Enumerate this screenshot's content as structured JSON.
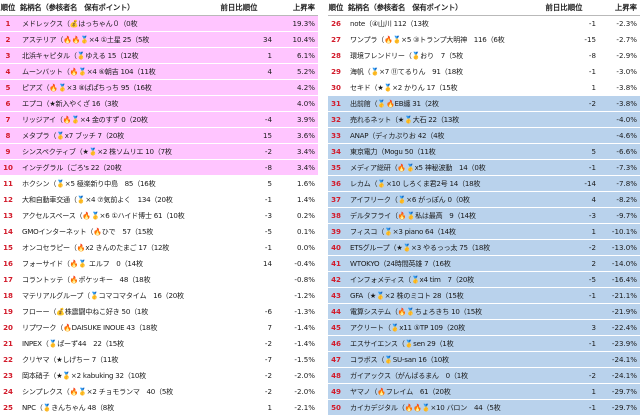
{
  "colors": {
    "highlight_top": "#ffc5ff",
    "highlight_bottom": "#b9d2ec",
    "rank_text": "#d21a2a"
  },
  "left": {
    "headers": {
      "rank": "順位",
      "name": "銘柄名（参核者名　保有ポイント）",
      "prev": "前日比順位",
      "rate": "上昇率"
    },
    "rows": [
      {
        "rank": "1",
        "name": "メドレックス（💰はっちゃん０（0枚",
        "prev": "",
        "rate": "19.3%",
        "hl": true
      },
      {
        "rank": "2",
        "name": "アステリア（🔥🔥🥇×4 ①土星 25（5枚",
        "prev": "34",
        "rate": "10.4%",
        "hl": true
      },
      {
        "rank": "3",
        "name": "北浜キャピタル（🥇ゆえる 15（12枚",
        "prev": "1",
        "rate": "6.1%",
        "hl": true
      },
      {
        "rank": "4",
        "name": "ムーンバット（🔥🥇×4 ⑥朝吉 104（11枚",
        "prev": "4",
        "rate": "5.2%",
        "hl": true
      },
      {
        "rank": "5",
        "name": "ピアズ（🔥🥇×3 ⑧ぱぱちっち 95（16枚",
        "prev": "",
        "rate": "4.2%",
        "hl": true
      },
      {
        "rank": "6",
        "name": "エプコ（★新入やくざ 16（3枚",
        "prev": "",
        "rate": "4.0%",
        "hl": true
      },
      {
        "rank": "7",
        "name": "リッジアイ（🔥🥇×4 金のすず 0（20枚",
        "prev": "-4",
        "rate": "3.9%",
        "hl": true
      },
      {
        "rank": "8",
        "name": "メタプラ（🥇x7 ブッチ 7（20枚",
        "prev": "15",
        "rate": "3.6%",
        "hl": true
      },
      {
        "rank": "9",
        "name": "シンスペクティブ（★🥇×2 株ソムリエ 10（7枚",
        "prev": "-2",
        "rate": "3.4%",
        "hl": true
      },
      {
        "rank": "10",
        "name": "インテグラル（ごろ's 22（20枚",
        "prev": "-8",
        "rate": "3.4%",
        "hl": true
      },
      {
        "rank": "11",
        "name": "ホクシン（🥇×5 極楽新り中島　85（16枚",
        "prev": "5",
        "rate": "1.6%",
        "hl": false
      },
      {
        "rank": "12",
        "name": "大和自動車交通（🥇×4 ⑦気前よく　134（20枚",
        "prev": "-1",
        "rate": "1.4%",
        "hl": false
      },
      {
        "rank": "13",
        "name": "アクセルスペース（🔥🥇×6 ①ハイド博士 61（10枚",
        "prev": "-3",
        "rate": "0.2%",
        "hl": false
      },
      {
        "rank": "14",
        "name": "GMOインターネット（🔥ひで　57（15枚",
        "prev": "-5",
        "rate": "0.1%",
        "hl": false
      },
      {
        "rank": "15",
        "name": "オンコセラピー（🔥x2 きんのたまご 17（12枚",
        "prev": "-1",
        "rate": "0.0%",
        "hl": false
      },
      {
        "rank": "16",
        "name": "フォーサイド（🔥🥇 エルフ　0（14枚",
        "prev": "14",
        "rate": "-0.4%",
        "hl": false
      },
      {
        "rank": "17",
        "name": "コラントッテ（🔥ポケッキー　48（18枚",
        "prev": "",
        "rate": "-0.8%",
        "hl": false
      },
      {
        "rank": "18",
        "name": "マテリアルグループ（🥇コマコマタイム　16（20枚",
        "prev": "",
        "rate": "-1.2%",
        "hl": false
      },
      {
        "rank": "19",
        "name": "フローー（💰株震闘中ねこ好き 50（1枚",
        "prev": "-6",
        "rate": "-1.3%",
        "hl": false
      },
      {
        "rank": "20",
        "name": "リプワーク（🔥DAISUKE INOUE 43（18枚",
        "prev": "7",
        "rate": "-1.4%",
        "hl": false
      },
      {
        "rank": "21",
        "name": "INPEX（🥇ぱーず44　22（15枚",
        "prev": "-2",
        "rate": "-1.4%",
        "hl": false
      },
      {
        "rank": "22",
        "name": "クリヤマ（★しげちー 7（11枚",
        "prev": "-7",
        "rate": "-1.5%",
        "hl": false
      },
      {
        "rank": "23",
        "name": "岡本硝子（★🥇×2 kabuking 32（10枚",
        "prev": "-2",
        "rate": "-2.0%",
        "hl": false
      },
      {
        "rank": "24",
        "name": "シンプレクス（🔥🥇×2 チョモランマ　40（5枚",
        "prev": "-2",
        "rate": "-2.0%",
        "hl": false
      },
      {
        "rank": "25",
        "name": "NPC（🥇きんちゃん 48（8枚",
        "prev": "1",
        "rate": "-2.1%",
        "hl": false
      }
    ]
  },
  "right": {
    "headers": {
      "rank": "順位",
      "name": "銘柄名（参核者名　保有ポイント）",
      "prev": "前日比順位",
      "rate": "上昇率"
    },
    "rows": [
      {
        "rank": "26",
        "name": "note（④山川 112（13枚",
        "prev": "-1",
        "rate": "-2.3%",
        "hl": false
      },
      {
        "rank": "27",
        "name": "ワンプラ（🔥🥇×5 ③トランプ大明神　116（6枚",
        "prev": "-15",
        "rate": "-2.7%",
        "hl": false
      },
      {
        "rank": "28",
        "name": "環境フレンドリー（🥇おり　7（5枚",
        "prev": "-8",
        "rate": "-2.9%",
        "hl": false
      },
      {
        "rank": "29",
        "name": "海帆（🥇×7 ⑪てるりん　91（18枚",
        "prev": "-1",
        "rate": "-3.0%",
        "hl": false
      },
      {
        "rank": "30",
        "name": "セキド（★🥇×2 かりん 17（15枚",
        "prev": "1",
        "rate": "-3.8%",
        "hl": false
      },
      {
        "rank": "31",
        "name": "出前館（🥇🔥EB纏 31（2枚",
        "prev": "-2",
        "rate": "-3.8%",
        "hl": true
      },
      {
        "rank": "32",
        "name": "売れるネット（★🥇大石 22（13枚",
        "prev": "",
        "rate": "-4.0%",
        "hl": true
      },
      {
        "rank": "33",
        "name": "ANAP（ディカぷりお 42（4枚",
        "prev": "",
        "rate": "-4.6%",
        "hl": true
      },
      {
        "rank": "34",
        "name": "東京電力（Mogu 50（11枚",
        "prev": "5",
        "rate": "-6.6%",
        "hl": true
      },
      {
        "rank": "35",
        "name": "メディア総研（🔥🥇x5 神秘波動　14（0枚",
        "prev": "-1",
        "rate": "-7.3%",
        "hl": true
      },
      {
        "rank": "36",
        "name": "レカム（🥇×10 しろくま君2号 14（18枚",
        "prev": "-14",
        "rate": "-7.8%",
        "hl": true
      },
      {
        "rank": "37",
        "name": "アイフリーク（🥇×6 がっぽん 0（0枚",
        "prev": "4",
        "rate": "-8.2%",
        "hl": true
      },
      {
        "rank": "38",
        "name": "デルタフライ（🔥🥇私は最高　9（14枚",
        "prev": "-3",
        "rate": "-9.7%",
        "hl": true
      },
      {
        "rank": "39",
        "name": "フィスコ（🥇×3 piano 64（14枚",
        "prev": "1",
        "rate": "-10.1%",
        "hl": true
      },
      {
        "rank": "40",
        "name": "ETSグループ（★🥇×3 やるっっ太 75（18枚",
        "prev": "-2",
        "rate": "-13.0%",
        "hl": true
      },
      {
        "rank": "41",
        "name": "WTOKYO（24時間英雄 7（16枚",
        "prev": "2",
        "rate": "-14.0%",
        "hl": true
      },
      {
        "rank": "42",
        "name": "インフォメティス（🥇x4 tim　7（20枚",
        "prev": "-5",
        "rate": "-16.4%",
        "hl": true
      },
      {
        "rank": "43",
        "name": "GFA（★🥇×2 株のミコト 28（15枚",
        "prev": "-1",
        "rate": "-21.1%",
        "hl": true
      },
      {
        "rank": "44",
        "name": "電算システム（🔥🥇ちょろきち 10（15枚",
        "prev": "",
        "rate": "-21.9%",
        "hl": true
      },
      {
        "rank": "45",
        "name": "アクリート（🥇x11 ⑤TP 109（20枚",
        "prev": "3",
        "rate": "-22.4%",
        "hl": true
      },
      {
        "rank": "46",
        "name": "エスサイエンス（🥇sen 29（1枚",
        "prev": "-1",
        "rate": "-23.9%",
        "hl": true
      },
      {
        "rank": "47",
        "name": "コラボス（🥇SU-san 16（10枚",
        "prev": "",
        "rate": "-24.1%",
        "hl": true
      },
      {
        "rank": "48",
        "name": "ガイアックス（がんばるまん　0（1枚",
        "prev": "-2",
        "rate": "-24.1%",
        "hl": true
      },
      {
        "rank": "49",
        "name": "ヤマノ（🔥フレイム　61（20枚",
        "prev": "1",
        "rate": "-29.7%",
        "hl": true
      },
      {
        "rank": "50",
        "name": "カイカデジタル（🔥🔥🥇×10 バロン　44（5枚",
        "prev": "-1",
        "rate": "-29.7%",
        "hl": true
      }
    ]
  }
}
